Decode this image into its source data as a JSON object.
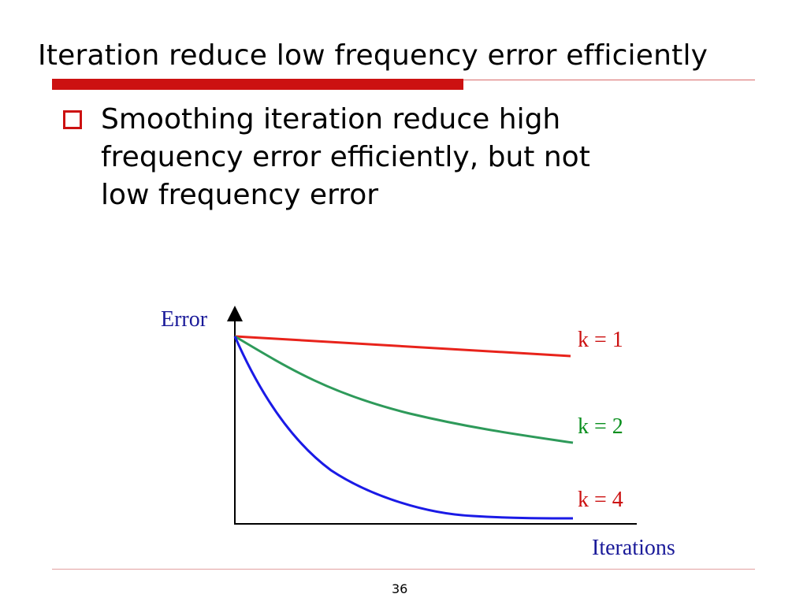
{
  "slide": {
    "title": "Iteration reduce low frequency error efficiently",
    "bullet": {
      "lines": [
        "Smoothing iteration reduce high",
        "frequency error efficiently, but not",
        "low frequency error"
      ]
    },
    "page_number": "36"
  },
  "diagram": {
    "y_axis_label": "Error",
    "x_axis_label": "Iterations",
    "curves": [
      {
        "label": "k = 1",
        "color": "#e8231b"
      },
      {
        "label": "k = 2",
        "color": "#2e9a5a"
      },
      {
        "label": "k = 4",
        "color": "#1a1ae6"
      }
    ],
    "axis_label_color": "#1a1a99",
    "k1_label_color": "#cc1111",
    "k2_label_color": "#0a8f1e",
    "k4_label_color": "#cc1111"
  },
  "colors": {
    "accent": "#cc1111"
  }
}
